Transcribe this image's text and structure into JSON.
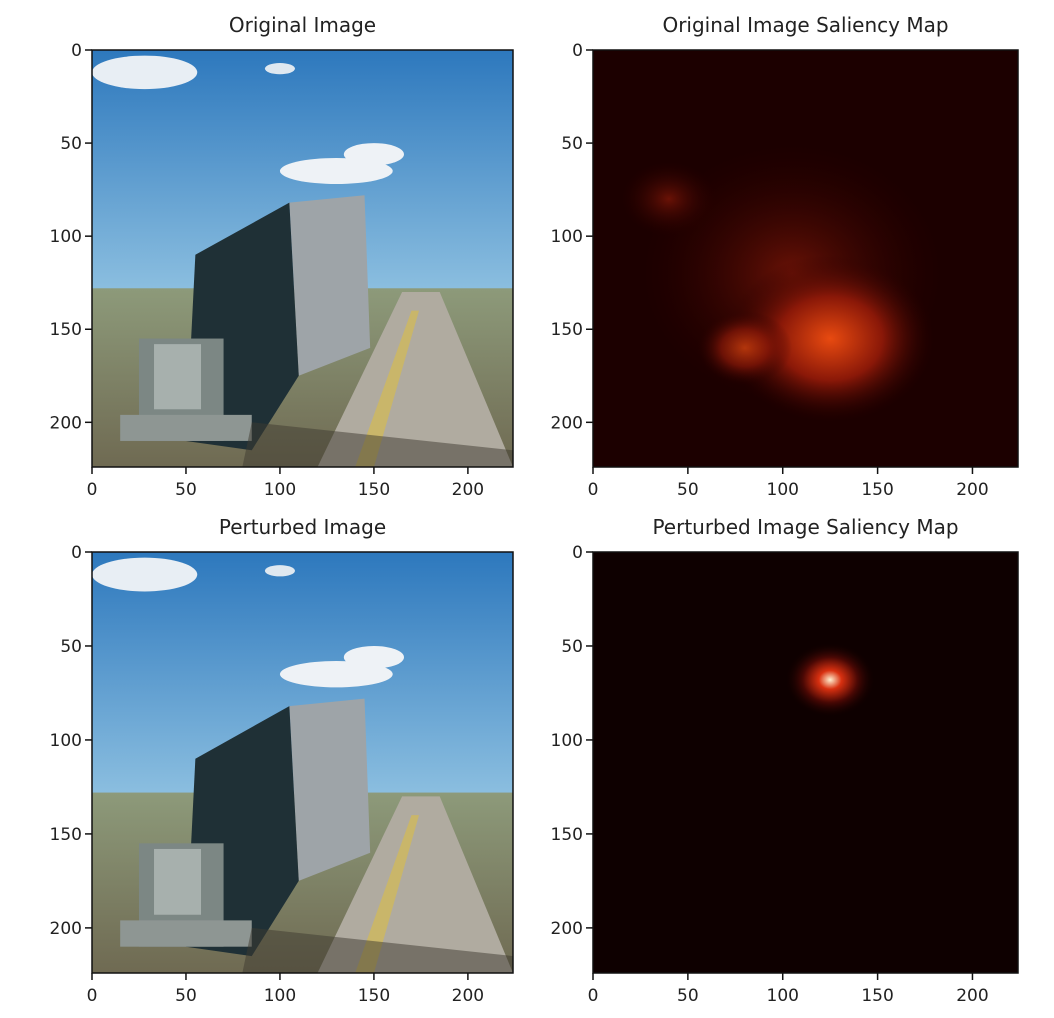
{
  "chart_data": [
    {
      "type": "image",
      "title": "Original Image",
      "xlim": [
        0,
        224
      ],
      "ylim": [
        224,
        0
      ],
      "xticks": [
        0,
        50,
        100,
        150,
        200
      ],
      "yticks": [
        0,
        50,
        100,
        150,
        200
      ]
    },
    {
      "type": "image",
      "title": "Original Image Saliency Map",
      "xlim": [
        0,
        224
      ],
      "ylim": [
        224,
        0
      ],
      "xticks": [
        0,
        50,
        100,
        150,
        200
      ],
      "yticks": [
        0,
        50,
        100,
        150,
        200
      ]
    },
    {
      "type": "image",
      "title": "Perturbed Image",
      "xlim": [
        0,
        224
      ],
      "ylim": [
        224,
        0
      ],
      "xticks": [
        0,
        50,
        100,
        150,
        200
      ],
      "yticks": [
        0,
        50,
        100,
        150,
        200
      ]
    },
    {
      "type": "image",
      "title": "Perturbed Image Saliency Map",
      "xlim": [
        0,
        224
      ],
      "ylim": [
        224,
        0
      ],
      "xticks": [
        0,
        50,
        100,
        150,
        200
      ],
      "yticks": [
        0,
        50,
        100,
        150,
        200
      ]
    }
  ]
}
